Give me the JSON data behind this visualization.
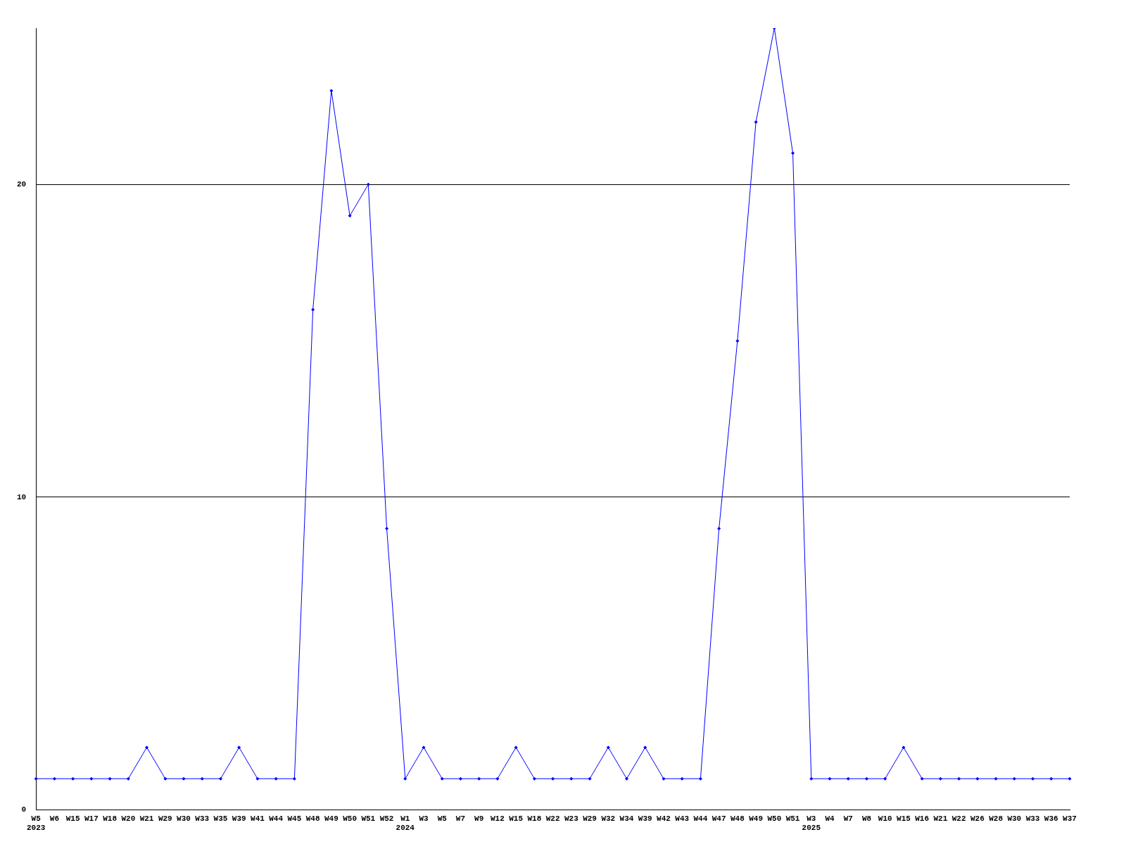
{
  "chart_data": {
    "type": "line",
    "categories": [
      "W5\n2023",
      "W6",
      "W15",
      "W17",
      "W18",
      "W20",
      "W21",
      "W29",
      "W30",
      "W33",
      "W35",
      "W39",
      "W41",
      "W44",
      "W45",
      "W48",
      "W49",
      "W50",
      "W51",
      "W52",
      "W1\n2024",
      "W3",
      "W5",
      "W7",
      "W9",
      "W12",
      "W15",
      "W18",
      "W22",
      "W23",
      "W29",
      "W32",
      "W34",
      "W39",
      "W42",
      "W43",
      "W44",
      "W47",
      "W48",
      "W49",
      "W50",
      "W51",
      "W3\n2025",
      "W4",
      "W7",
      "W8",
      "W10",
      "W15",
      "W16",
      "W21",
      "W22",
      "W26",
      "W28",
      "W30",
      "W33",
      "W36",
      "W37"
    ],
    "series": [
      {
        "color": "#0000ff",
        "values": [
          1,
          1,
          1,
          1,
          1,
          1,
          2,
          1,
          1,
          1,
          1,
          2,
          1,
          1,
          1,
          16,
          23,
          19,
          20,
          9,
          1,
          2,
          1,
          1,
          1,
          1,
          2,
          1,
          1,
          1,
          1,
          2,
          1,
          2,
          1,
          1,
          1,
          9,
          15,
          22,
          25,
          21,
          1,
          1,
          1,
          1,
          1,
          2,
          1,
          1,
          1,
          1,
          1,
          1,
          1,
          1,
          1
        ]
      }
    ],
    "ylim": [
      0,
      25
    ],
    "yticks": [
      0,
      10,
      20
    ],
    "grid": "y",
    "legend": false,
    "marker": "diamond",
    "line_style": "solid"
  }
}
